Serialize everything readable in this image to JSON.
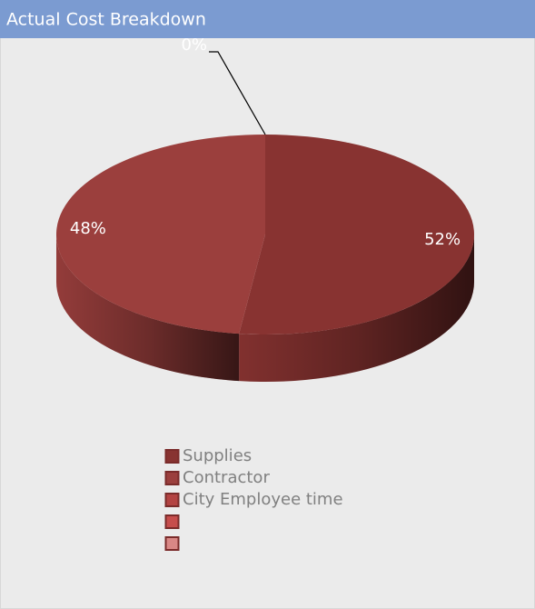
{
  "chart_data": {
    "type": "pie",
    "title": "Actual Cost Breakdown",
    "categories": [
      "Supplies",
      "Contractor",
      "City Employee time",
      null,
      null
    ],
    "values": [
      52,
      48,
      0,
      null,
      null
    ],
    "value_labels": [
      "52%",
      "48%",
      "0%",
      null,
      null
    ],
    "colors": [
      "#883331",
      "#9b3f3d",
      "#b34342",
      "#c64d4c",
      "#d98886"
    ],
    "legend": "bottom"
  }
}
